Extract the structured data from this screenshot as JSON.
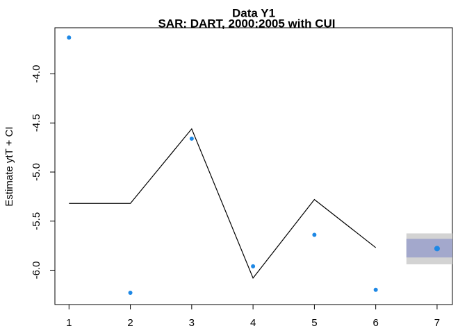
{
  "chart_data": {
    "type": "line",
    "title": "Data Y1",
    "subtitle": "SAR: DART, 2000:2005 with CUI",
    "y_label": "Estimate ytT + CI",
    "xlim": [
      0.77,
      7.25
    ],
    "ylim": [
      -6.35,
      -3.53
    ],
    "xticks": [
      1,
      2,
      3,
      4,
      5,
      6,
      7
    ],
    "yticks": [
      {
        "value": -4,
        "label": "-4.0"
      },
      {
        "value": -4.5,
        "label": "-4.5"
      },
      {
        "value": -5,
        "label": "-5.0"
      },
      {
        "value": -5.5,
        "label": "-5.5"
      },
      {
        "value": -6,
        "label": "-6.0"
      }
    ],
    "series": [
      {
        "mode": "line",
        "color": "#000000",
        "x": [
          1,
          2,
          3,
          4,
          5,
          6
        ],
        "values": [
          -5.32,
          -5.32,
          -4.56,
          -6.08,
          -5.28,
          -5.77
        ]
      },
      {
        "mode": "points",
        "color": "#1e88e5",
        "x": [
          1,
          2,
          3,
          4,
          5,
          6,
          7
        ],
        "values": [
          -3.63,
          -6.23,
          -4.66,
          -5.96,
          -5.64,
          -6.2,
          -5.78
        ]
      }
    ],
    "intervals": [
      {
        "x": [
          6.5,
          7.25
        ],
        "y": [
          -5.94,
          -5.625
        ],
        "color": "#d3d3d3"
      },
      {
        "x": [
          6.5,
          7.25
        ],
        "y": [
          -5.87,
          -5.68
        ],
        "color": "#a3a8cc"
      }
    ]
  }
}
